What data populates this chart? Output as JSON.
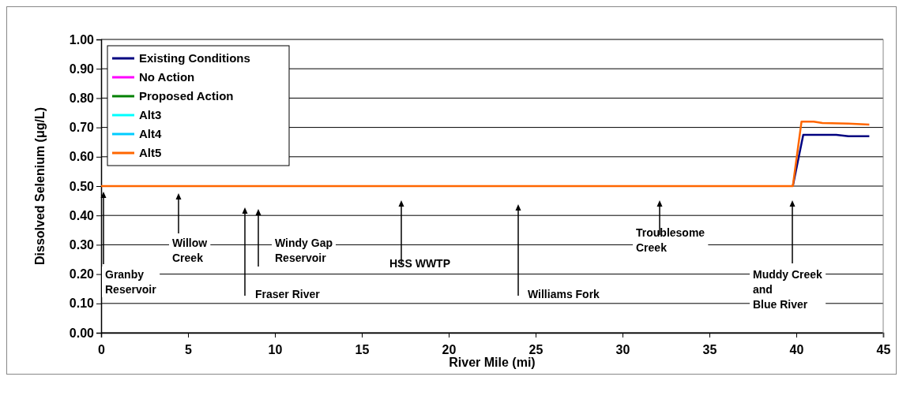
{
  "chart_data": {
    "type": "line",
    "xlabel": "River Mile (mi)",
    "ylabel": "Dissolved Selenium (μg/L)",
    "xlim": [
      0,
      45
    ],
    "xticks": [
      0,
      5,
      10,
      15,
      20,
      25,
      30,
      35,
      40,
      45
    ],
    "ylim": [
      0,
      1
    ],
    "yticks": [
      {
        "value": 0,
        "label": "0.00"
      },
      {
        "value": 0.1,
        "label": "0.10"
      },
      {
        "value": 0.2,
        "label": "0.20"
      },
      {
        "value": 0.3,
        "label": "0.30"
      },
      {
        "value": 0.4,
        "label": "0.40"
      },
      {
        "value": 0.5,
        "label": "0.50"
      },
      {
        "value": 0.6,
        "label": "0.60"
      },
      {
        "value": 0.7,
        "label": "0.70"
      },
      {
        "value": 0.8,
        "label": "0.80"
      },
      {
        "value": 0.9,
        "label": "0.90"
      },
      {
        "value": 1,
        "label": "1.00"
      }
    ],
    "grid": "y",
    "legend": "top left",
    "marker": "none",
    "line_style": "solid",
    "series": [
      {
        "name": "Existing Conditions",
        "color": "#000080",
        "x": [
          39.8,
          40.4,
          42.3,
          43.0,
          44.2
        ],
        "values": [
          0.5,
          0.675,
          0.675,
          0.67,
          0.67
        ]
      },
      {
        "name": "No Action",
        "color": "#ff00ff"
      },
      {
        "name": "Proposed Action",
        "color": "#008000"
      },
      {
        "name": "Alt3",
        "color": "#00ffff"
      },
      {
        "name": "Alt4",
        "color": "#00ccff"
      },
      {
        "name": "Alt5",
        "color": "#ff6600",
        "x": [
          0,
          39.8,
          40.3,
          41.0,
          41.5,
          43.0,
          44.2
        ],
        "values": [
          0.5,
          0.5,
          0.72,
          0.72,
          0.715,
          0.713,
          0.71
        ]
      }
    ],
    "annotations": [
      "Granby\nReservoir",
      "Willow\nCreek",
      "Fraser River",
      "Windy Gap\nReservoir",
      "HSS WWTP",
      "Williams Fork",
      "Troublesome\nCreek",
      "Muddy Creek\nand\nBlue River"
    ]
  }
}
